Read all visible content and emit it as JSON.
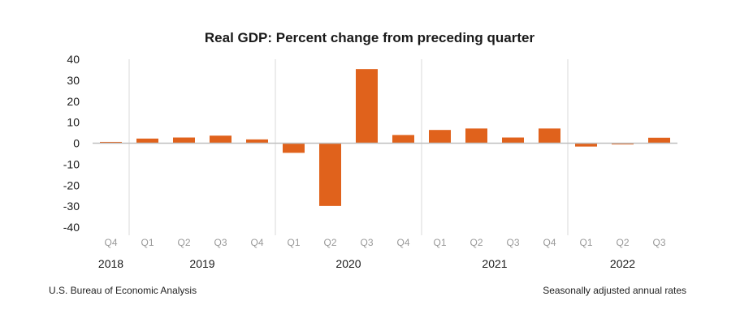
{
  "chart_data": {
    "type": "bar",
    "title": "Real GDP:  Percent change from preceding quarter",
    "xlabel": "",
    "ylabel": "",
    "ylim": [
      -40,
      40
    ],
    "yticks": [
      40,
      30,
      20,
      10,
      0,
      -10,
      -20,
      -30,
      -40
    ],
    "categories": [
      "Q4",
      "Q1",
      "Q2",
      "Q3",
      "Q4",
      "Q1",
      "Q2",
      "Q3",
      "Q4",
      "Q1",
      "Q2",
      "Q3",
      "Q4",
      "Q1",
      "Q2",
      "Q3"
    ],
    "values": [
      0.6,
      2.2,
      2.7,
      3.6,
      1.8,
      -4.6,
      -29.9,
      35.3,
      3.9,
      6.3,
      7.0,
      2.7,
      7.0,
      -1.6,
      -0.6,
      2.6
    ],
    "years": [
      {
        "label": "2018",
        "start": 0,
        "count": 1
      },
      {
        "label": "2019",
        "start": 1,
        "count": 4
      },
      {
        "label": "2020",
        "start": 5,
        "count": 4
      },
      {
        "label": "2021",
        "start": 9,
        "count": 4
      },
      {
        "label": "2022",
        "start": 13,
        "count": 3
      }
    ],
    "grid": false,
    "bar_color": "#e0621c",
    "axis_color": "#bfbfbf"
  },
  "footer": {
    "source": "U.S. Bureau of Economic Analysis",
    "note": "Seasonally adjusted annual rates"
  }
}
